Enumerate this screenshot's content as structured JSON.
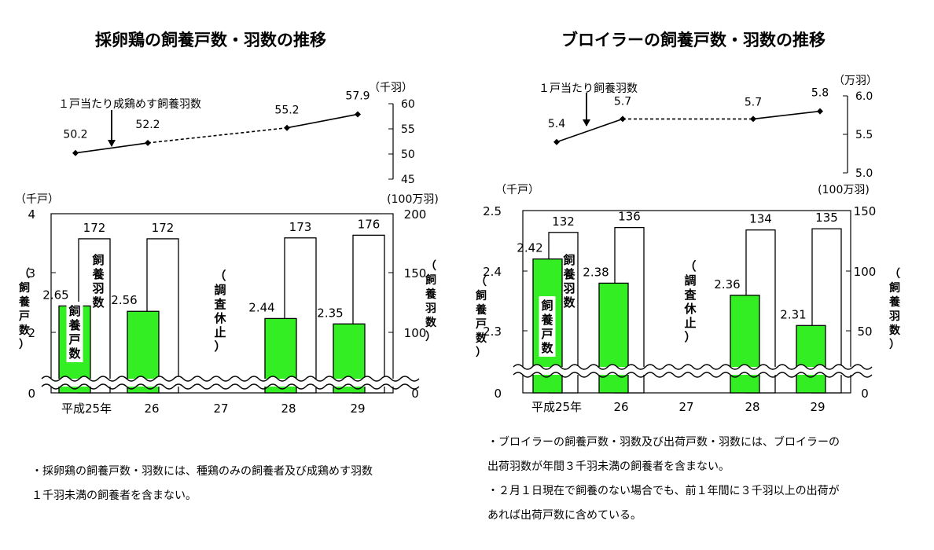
{
  "colors": {
    "green": "#33ee22",
    "ink": "#000000",
    "paper": "#ffffff"
  },
  "chart_data": [
    {
      "id": "layer",
      "type": "bar",
      "title": "採卵鶏の飼養戸数・羽数の推移",
      "categories": [
        "平成25年",
        "26",
        "27",
        "28",
        "29"
      ],
      "series": [
        {
          "name": "飼養戸数",
          "unit": "千戸",
          "values": [
            2.65,
            2.56,
            null,
            2.44,
            2.35
          ],
          "labels": [
            "2.65",
            "2.56",
            "",
            "2.44",
            "2.35"
          ]
        },
        {
          "name": "飼養羽数",
          "unit": "100万羽",
          "values": [
            172,
            172,
            null,
            173,
            176
          ],
          "labels": [
            "172",
            "172",
            "",
            "173",
            "176"
          ]
        }
      ],
      "left_axis": {
        "unit": "（千戸）",
        "label": "飼養戸数",
        "ticks": [
          "0",
          "2",
          "3",
          "4"
        ]
      },
      "right_axis": {
        "unit": "(100万羽)",
        "label": "飼養羽数",
        "ticks": [
          "0",
          "100",
          "150",
          "200"
        ]
      },
      "survey_note": "調査休止",
      "bar_label_farms": "飼養戸数",
      "bar_label_birds": "飼養羽数",
      "per_farm": {
        "label": "１戸当たり成鶏めす飼養羽数",
        "unit": "（千羽）",
        "values": [
          50.2,
          52.2,
          null,
          55.2,
          57.9
        ],
        "labels": [
          "50.2",
          "52.2",
          "",
          "55.2",
          "57.9"
        ],
        "ticks": [
          "45",
          "50",
          "55",
          "60"
        ],
        "ylim": [
          45,
          60
        ]
      }
    },
    {
      "id": "broiler",
      "type": "bar",
      "title": "ブロイラーの飼養戸数・羽数の推移",
      "categories": [
        "平成25年",
        "26",
        "27",
        "28",
        "29"
      ],
      "series": [
        {
          "name": "飼養戸数",
          "unit": "千戸",
          "values": [
            2.42,
            2.38,
            null,
            2.36,
            2.31
          ],
          "labels": [
            "2.42",
            "2.38",
            "",
            "2.36",
            "2.31"
          ]
        },
        {
          "name": "飼養羽数",
          "unit": "100万羽",
          "values": [
            132,
            136,
            null,
            134,
            135
          ],
          "labels": [
            "132",
            "136",
            "",
            "134",
            "135"
          ]
        }
      ],
      "left_axis": {
        "unit": "（千戸）",
        "label": "飼養戸数",
        "ticks": [
          "0",
          "2.3",
          "2.4",
          "2.5"
        ]
      },
      "right_axis": {
        "unit": "(100万羽)",
        "label": "飼養羽数",
        "ticks": [
          "0",
          "50",
          "100",
          "150"
        ]
      },
      "survey_note": "調査休止",
      "bar_label_farms": "飼養戸数",
      "bar_label_birds": "飼養羽数",
      "per_farm": {
        "label": "１戸当たり飼養羽数",
        "unit": "（万羽）",
        "values": [
          5.4,
          5.7,
          null,
          5.7,
          5.8
        ],
        "labels": [
          "5.4",
          "5.7",
          "",
          "5.7",
          "5.8"
        ],
        "ticks": [
          "5.0",
          "5.5",
          "6.0"
        ],
        "ylim": [
          5.0,
          6.0
        ]
      }
    }
  ],
  "notes": {
    "left": [
      "・採卵鶏の飼養戸数・羽数には、種鶏のみの飼養者及び成鶏めす羽数",
      "１千羽未満の飼養者を含まない。"
    ],
    "right": [
      "・ブロイラーの飼養戸数・羽数及び出荷戸数・羽数には、ブロイラーの",
      "出荷羽数が年間３千羽未満の飼養者を含まない。",
      "・２月１日現在で飼養のない場合でも、前１年間に３千羽以上の出荷が",
      "あれば出荷戸数に含めている。"
    ]
  }
}
